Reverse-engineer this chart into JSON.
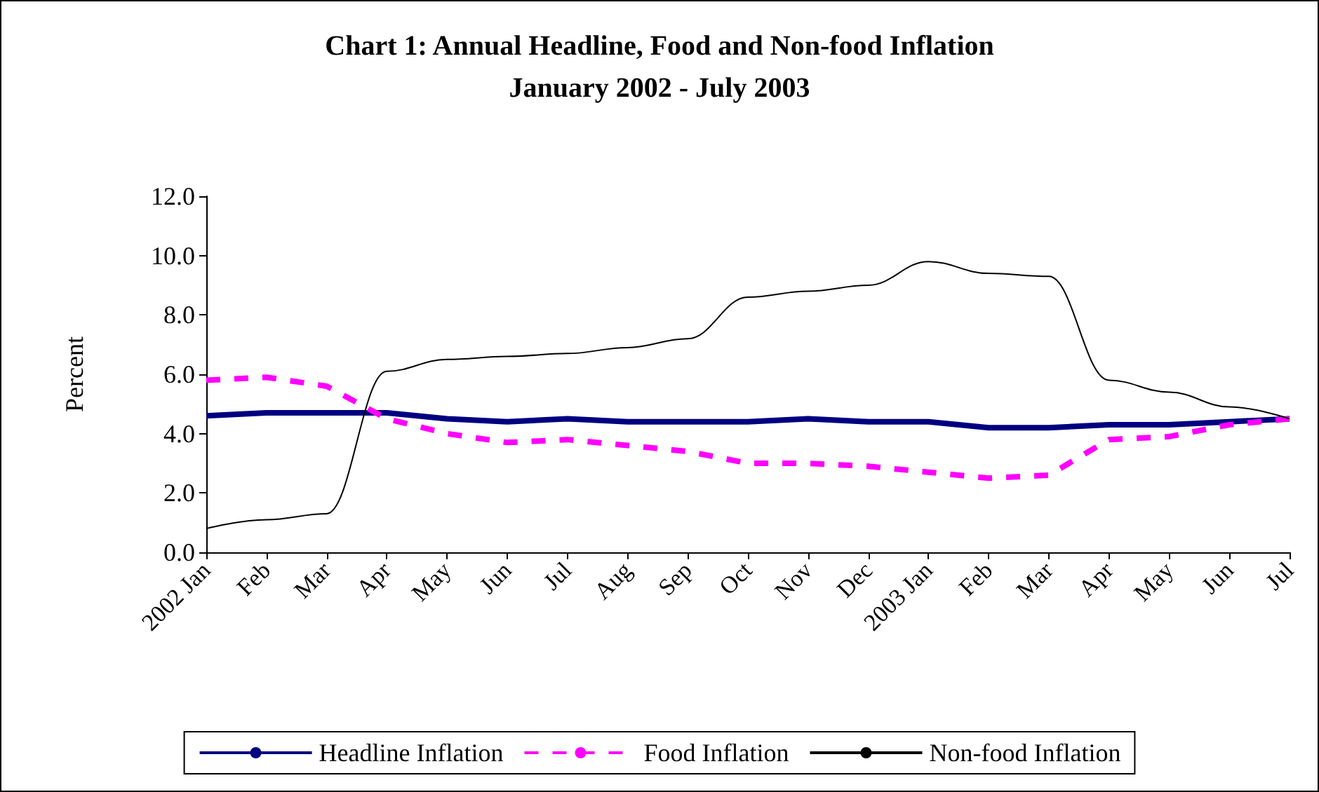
{
  "chart_data": {
    "type": "line",
    "title": "Chart 1: Annual Headline, Food and Non-food Inflation\nJanuary 2002 - July 2003",
    "ylabel": "Percent",
    "categories": [
      "2002 Jan",
      "Feb",
      "Mar",
      "Apr",
      "May",
      "Jun",
      "Jul",
      "Aug",
      "Sep",
      "Oct",
      "Nov",
      "Dec",
      "2003 Jan",
      "Feb",
      "Mar",
      "Apr",
      "May",
      "Jun",
      "Jul"
    ],
    "series": [
      {
        "name": "Headline Inflation",
        "color": "#000080",
        "line_style": "solid",
        "values": [
          4.6,
          4.7,
          4.7,
          4.7,
          4.5,
          4.4,
          4.5,
          4.4,
          4.4,
          4.4,
          4.5,
          4.4,
          4.4,
          4.2,
          4.2,
          4.3,
          4.3,
          4.4,
          4.5
        ]
      },
      {
        "name": "Food Inflation",
        "color": "#ff00ff",
        "line_style": "dashed",
        "values": [
          5.8,
          5.9,
          5.6,
          4.5,
          4.0,
          3.7,
          3.8,
          3.6,
          3.4,
          3.0,
          3.0,
          2.9,
          2.7,
          2.5,
          2.6,
          3.8,
          3.9,
          4.3,
          4.5
        ]
      },
      {
        "name": "Non-food Inflation",
        "color": "#000000",
        "line_style": "solid",
        "values": [
          0.8,
          1.1,
          1.3,
          6.1,
          6.5,
          6.6,
          6.7,
          6.9,
          7.2,
          8.6,
          8.8,
          9.0,
          9.8,
          9.4,
          9.3,
          5.8,
          5.4,
          4.9,
          4.5
        ]
      }
    ],
    "ylim": [
      0,
      12
    ],
    "yticks": [
      {
        "value": 0,
        "label": "0.0"
      },
      {
        "value": 2,
        "label": "2.0"
      },
      {
        "value": 4,
        "label": "4.0"
      },
      {
        "value": 6,
        "label": "6.0"
      },
      {
        "value": 8,
        "label": "8.0"
      },
      {
        "value": 10,
        "label": "10.0"
      },
      {
        "value": 12,
        "label": "12.0"
      }
    ],
    "grid": false,
    "legend": "bottom",
    "marker": "none"
  }
}
